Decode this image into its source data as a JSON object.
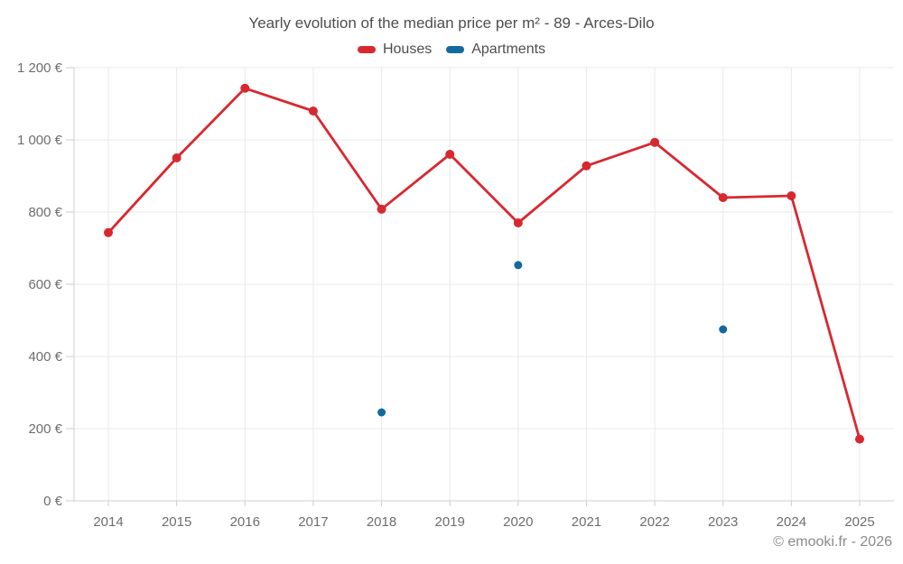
{
  "title": "Yearly evolution of the median price per m² - 89 - Arces-Dilo",
  "legend": [
    {
      "label": "Houses",
      "color": "#d8282f"
    },
    {
      "label": "Apartments",
      "color": "#136a9e"
    }
  ],
  "footer": "© emooki.fr - 2026",
  "chart_data": {
    "type": "line",
    "title": "Yearly evolution of the median price per m² - 89 - Arces-Dilo",
    "categories": [
      2014,
      2015,
      2016,
      2017,
      2018,
      2019,
      2020,
      2021,
      2022,
      2023,
      2024,
      2025
    ],
    "series": [
      {
        "name": "Houses",
        "type": "line",
        "color": "#d8282f",
        "values": [
          743,
          950,
          1143,
          1080,
          808,
          960,
          770,
          928,
          993,
          840,
          845,
          171
        ]
      },
      {
        "name": "Apartments",
        "type": "scatter",
        "color": "#136a9e",
        "points": [
          {
            "x": 2018,
            "y": 245
          },
          {
            "x": 2020,
            "y": 653
          },
          {
            "x": 2023,
            "y": 475
          }
        ]
      }
    ],
    "xlabel": "",
    "ylabel": "",
    "yticks": [
      0,
      200,
      400,
      600,
      800,
      1000,
      1200
    ],
    "ytick_labels": [
      "0 €",
      "200 €",
      "400 €",
      "600 €",
      "800 €",
      "1 000 €",
      "1 200 €"
    ],
    "ylim": [
      0,
      1200
    ],
    "grid": true,
    "legend_position": "top",
    "colors": {
      "grid_line": "#e9e9e9",
      "axis_line": "#cfcfcf",
      "tick_label": "#6e6e6e"
    }
  }
}
